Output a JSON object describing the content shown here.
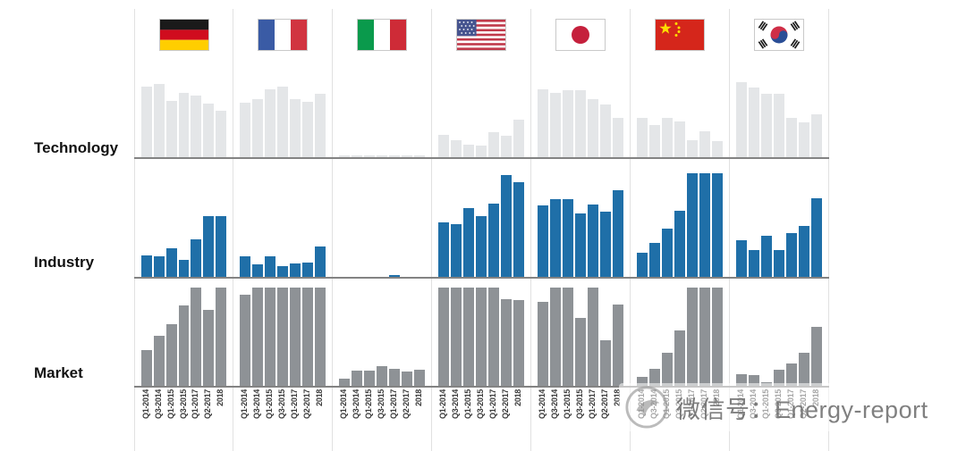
{
  "watermark": {
    "text": "微信号：Energy-report"
  },
  "colors": {
    "technology_bar": "#e4e6e8",
    "industry_bar": "#1f6fa8",
    "market_bar": "#8e9296",
    "axis_line": "#838383",
    "divider_line": "#e1e1e1"
  },
  "chart_data": {
    "type": "bar",
    "layout": "small_multiples_grid (3 metric rows x 7 country columns, flags as column headers)",
    "unit": "relative bar height 0-1, estimated from pixels (no numeric axis shown)",
    "columns": [
      "Germany",
      "France",
      "Italy",
      "United States",
      "Japan",
      "China",
      "South Korea"
    ],
    "x_tick_labels": [
      "Q1-2014",
      "Q3-2014",
      "Q1-2015",
      "Q3-2015",
      "Q1-2017",
      "Q2-2017",
      "2018"
    ],
    "grid": "light vertical dividers between country panels; gray baseline under each metric row",
    "rows": [
      {
        "label": "Technology",
        "color": "#e4e6e8",
        "series": {
          "Germany": [
            0.94,
            0.98,
            0.75,
            0.86,
            0.82,
            0.72,
            0.62
          ],
          "France": [
            0.73,
            0.78,
            0.9,
            0.94,
            0.78,
            0.74,
            0.85
          ],
          "Italy": [
            0.025,
            0.025,
            0.025,
            0.025,
            0.025,
            0.025,
            0.025
          ],
          "United States": [
            0.3,
            0.23,
            0.17,
            0.15,
            0.33,
            0.29,
            0.5
          ],
          "Japan": [
            0.91,
            0.86,
            0.89,
            0.89,
            0.77,
            0.7,
            0.52
          ],
          "China": [
            0.53,
            0.43,
            0.53,
            0.48,
            0.23,
            0.35,
            0.22
          ],
          "South Korea": [
            1.0,
            0.93,
            0.85,
            0.85,
            0.52,
            0.46,
            0.57
          ]
        }
      },
      {
        "label": "Industry",
        "color": "#1f6fa8",
        "series": {
          "Germany": [
            0.21,
            0.2,
            0.28,
            0.16,
            0.36,
            0.59,
            0.59
          ],
          "France": [
            0.2,
            0.12,
            0.2,
            0.1,
            0.13,
            0.14,
            0.29
          ],
          "Italy": [
            0,
            0,
            0,
            0,
            0.015,
            0,
            0
          ],
          "United States": [
            0.53,
            0.51,
            0.66,
            0.59,
            0.71,
            0.98,
            0.91
          ],
          "Japan": [
            0.69,
            0.75,
            0.75,
            0.61,
            0.7,
            0.63,
            0.84
          ],
          "China": [
            0.23,
            0.33,
            0.47,
            0.64,
            1.0,
            1.0,
            1.0
          ],
          "South Korea": [
            0.35,
            0.26,
            0.4,
            0.26,
            0.42,
            0.49,
            0.76
          ]
        }
      },
      {
        "label": "Market",
        "color": "#8e9296",
        "series": {
          "Germany": [
            0.36,
            0.5,
            0.62,
            0.8,
            0.98,
            0.76,
            0.98
          ],
          "France": [
            0.91,
            0.98,
            0.98,
            0.98,
            0.98,
            0.98,
            0.98
          ],
          "Italy": [
            0.07,
            0.15,
            0.15,
            0.2,
            0.17,
            0.14,
            0.16
          ],
          "United States": [
            0.98,
            0.98,
            0.98,
            0.98,
            0.98,
            0.87,
            0.86
          ],
          "Japan": [
            0.84,
            0.98,
            0.98,
            0.68,
            0.98,
            0.46,
            0.81
          ],
          "China": [
            0.09,
            0.17,
            0.33,
            0.55,
            0.98,
            0.98,
            0.98
          ],
          "South Korea": [
            0.12,
            0.11,
            0.04,
            0.16,
            0.22,
            0.33,
            0.59
          ]
        }
      }
    ]
  }
}
